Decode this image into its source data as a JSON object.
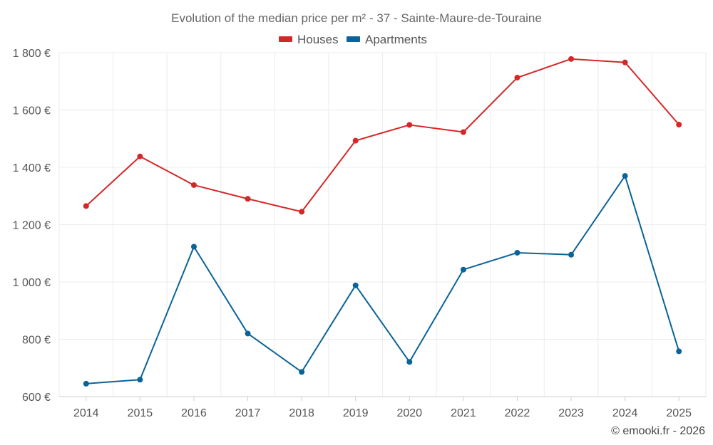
{
  "chart_data": {
    "type": "line",
    "title": "Evolution of the median price per m² - 37 - Sainte-Maure-de-Touraine",
    "categories": [
      "2014",
      "2015",
      "2016",
      "2017",
      "2018",
      "2019",
      "2020",
      "2021",
      "2022",
      "2023",
      "2024",
      "2025"
    ],
    "series": [
      {
        "name": "Houses",
        "color": "#d62728",
        "values": [
          1265,
          1438,
          1338,
          1290,
          1245,
          1493,
          1548,
          1523,
          1713,
          1778,
          1766,
          1549
        ]
      },
      {
        "name": "Apartments",
        "color": "#0b6397",
        "values": [
          645,
          659,
          1123,
          820,
          686,
          988,
          721,
          1043,
          1102,
          1095,
          1370,
          758
        ]
      }
    ],
    "ylim": [
      600,
      1800
    ],
    "yticks": [
      600,
      800,
      1000,
      1200,
      1400,
      1600,
      1800
    ],
    "ytick_labels": [
      "600 €",
      "800 €",
      "1 000 €",
      "1 200 €",
      "1 400 €",
      "1 600 €",
      "1 800 €"
    ],
    "xlabel": "",
    "ylabel": "",
    "legend_position": "top-center",
    "grid": true
  },
  "credit": "© emooki.fr - 2026"
}
